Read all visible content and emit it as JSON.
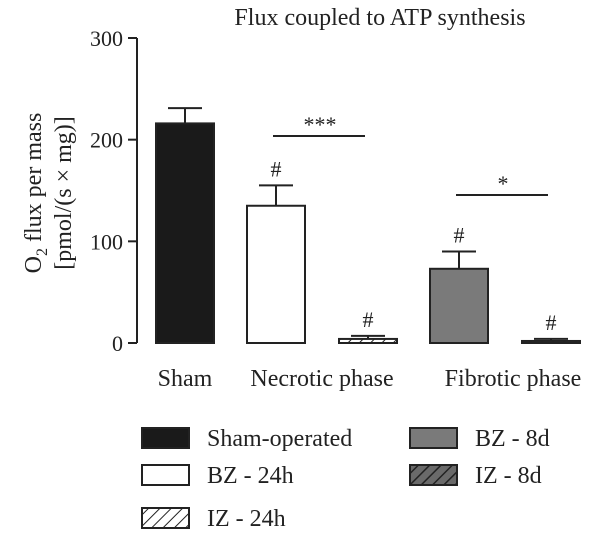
{
  "chart_data": {
    "type": "bar",
    "title": "Flux coupled to ATP synthesis",
    "ylabel_line1": "O",
    "ylabel_sub": "2",
    "ylabel_line1_rest": " flux per mass",
    "ylabel_line2": "[pmol/(s × mg)]",
    "ylim": [
      0,
      300
    ],
    "yticks": [
      0,
      100,
      200,
      300
    ],
    "ytick_labels": [
      "0",
      "100",
      "200",
      "300"
    ],
    "groups": [
      "Sham",
      "Necrotic phase",
      "Fibrotic phase"
    ],
    "bars": [
      {
        "series": "Sham-operated",
        "group": "Sham",
        "value": 216,
        "error": 15,
        "mark": ""
      },
      {
        "series": "BZ - 24h",
        "group": "Necrotic phase",
        "value": 135,
        "error": 20,
        "mark": "#"
      },
      {
        "series": "IZ - 24h",
        "group": "Necrotic phase",
        "value": 4,
        "error": 3,
        "mark": "#"
      },
      {
        "series": "BZ - 8d",
        "group": "Fibrotic phase",
        "value": 73,
        "error": 17,
        "mark": "#"
      },
      {
        "series": "IZ - 8d",
        "group": "Fibrotic phase",
        "value": 2,
        "error": 2,
        "mark": "#"
      }
    ],
    "significance": [
      {
        "label": "***",
        "from": "BZ - 24h",
        "to": "IZ - 24h"
      },
      {
        "label": "*",
        "from": "BZ - 8d",
        "to": "IZ - 8d"
      }
    ],
    "series": [
      {
        "name": "Sham-operated",
        "fill": "#1a1a1a",
        "pattern": "solid"
      },
      {
        "name": "BZ - 24h",
        "fill": "#ffffff",
        "pattern": "solid"
      },
      {
        "name": "IZ - 24h",
        "fill": "#ffffff",
        "pattern": "hatch"
      },
      {
        "name": "BZ - 8d",
        "fill": "#7a7a7a",
        "pattern": "solid"
      },
      {
        "name": "IZ - 8d",
        "fill": "#555555",
        "pattern": "hatch"
      }
    ],
    "legend": {
      "placement": "bottom",
      "entries": [
        "Sham-operated",
        "BZ - 8d",
        "BZ - 24h",
        "IZ - 8d",
        "IZ - 24h"
      ]
    }
  }
}
